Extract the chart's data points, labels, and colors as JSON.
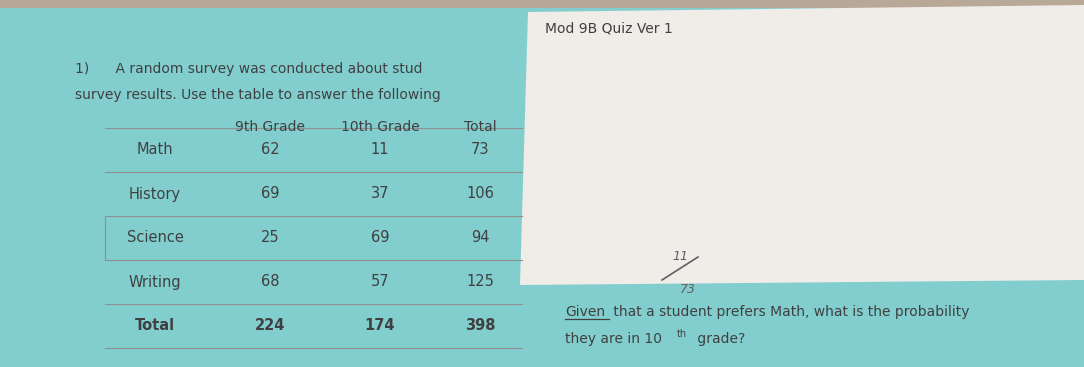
{
  "bg_color_teal": "#82cece",
  "bg_color_beige": "#ddd8d0",
  "bg_color_brown": "#b8a898",
  "white_paper_color": "#f0ece8",
  "title_top": "Mod 9B Quiz Ver 1",
  "header_line1": "1)      A random survey was conducted about stud",
  "header_line2": "survey results. Use the table to answer the following",
  "col_headers": [
    "9th Grade",
    "10th Grade",
    "Total"
  ],
  "rows": [
    [
      "Math",
      "62",
      "11",
      "73"
    ],
    [
      "History",
      "69",
      "37",
      "106"
    ],
    [
      "Science",
      "25",
      "69",
      "94"
    ],
    [
      "Writing",
      "68",
      "57",
      "125"
    ],
    [
      "Total",
      "224",
      "174",
      "398"
    ]
  ],
  "handwritten_annotation": "11\n73",
  "question_line1_pre": "Given",
  "question_line1_post": " that a student prefers Math, what is the probability",
  "question_line2_pre": "they are in 10",
  "question_line2_sup": "th",
  "question_line2_post": " grade?",
  "text_color": "#404040",
  "line_color": "#909090",
  "handwrite_color": "#606060"
}
